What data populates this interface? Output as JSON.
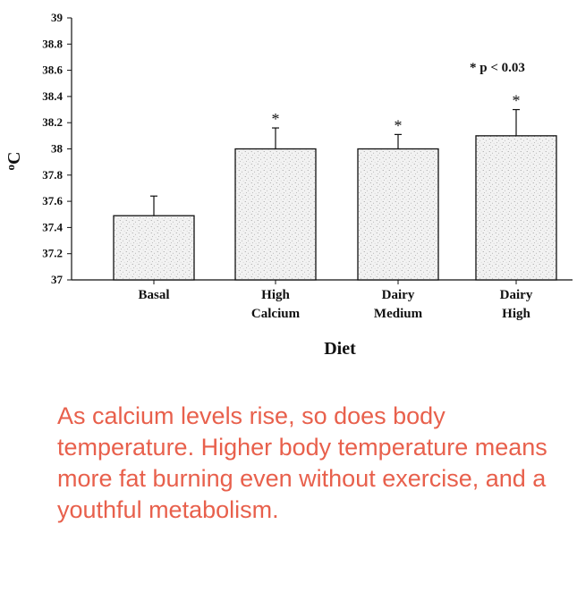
{
  "chart_data": {
    "type": "bar",
    "categories": [
      [
        "Basal"
      ],
      [
        "High",
        "Calcium"
      ],
      [
        "Dairy",
        "Medium"
      ],
      [
        "Dairy",
        "High"
      ]
    ],
    "values": [
      37.49,
      38.0,
      38.0,
      38.1
    ],
    "error_upper": [
      37.64,
      38.16,
      38.11,
      38.3
    ],
    "significant": [
      false,
      true,
      true,
      true
    ],
    "significance_marker": "*",
    "annotation": "* p < 0.03",
    "xlabel": "Diet",
    "ylabel": "oC",
    "ylim": [
      37,
      39
    ],
    "yticks": [
      "37",
      "37.2",
      "37.4",
      "37.6",
      "37.8",
      "38",
      "38.2",
      "38.4",
      "38.6",
      "38.8",
      "39"
    ],
    "grid": false,
    "legend": "none"
  },
  "caption": "As calcium levels rise, so does body temperature. Higher body temperature means more fat burning even without exercise, and a youthful metabolism.",
  "colors": {
    "bar_fill": "#f2f2f2",
    "bar_stipple": "#8a8a8a",
    "axis": "#111111",
    "caption": "#e8604c"
  }
}
